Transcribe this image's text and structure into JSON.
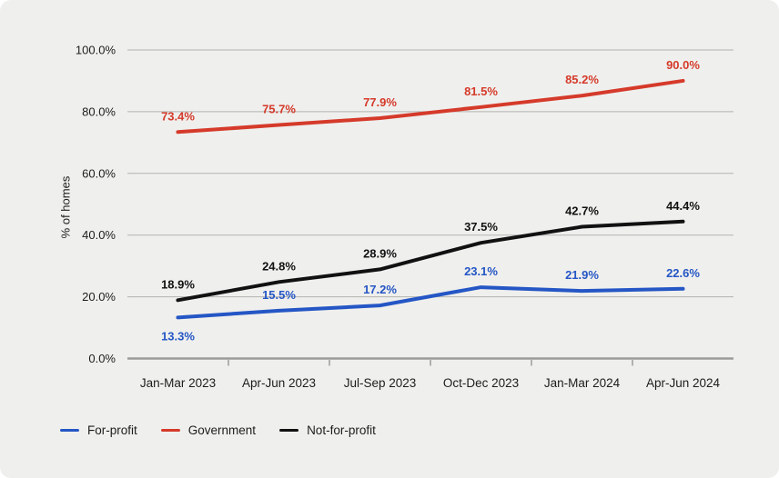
{
  "chart_data": {
    "type": "line",
    "title": "",
    "ylabel": "% of homes",
    "ylim": [
      0,
      100
    ],
    "grid": true,
    "legend_position": "bottom",
    "categories": [
      "Jan-Mar 2023",
      "Apr-Jun 2023",
      "Jul-Sep 2023",
      "Oct-Dec 2023",
      "Jan-Mar 2024",
      "Apr-Jun 2024"
    ],
    "y_ticks": [
      {
        "value": 0,
        "label": "0.0%"
      },
      {
        "value": 20,
        "label": "20.0%"
      },
      {
        "value": 40,
        "label": "40.0%"
      },
      {
        "value": 60,
        "label": "60.0%"
      },
      {
        "value": 80,
        "label": "80.0%"
      },
      {
        "value": 100,
        "label": "100.0%"
      }
    ],
    "series": [
      {
        "name": "For-profit",
        "color": "#2456c5",
        "values": [
          13.3,
          15.5,
          17.2,
          23.1,
          21.9,
          22.6
        ],
        "labels": [
          "13.3%",
          "15.5%",
          "17.2%",
          "23.1%",
          "21.9%",
          "22.6%"
        ]
      },
      {
        "name": "Government",
        "color": "#d53a2a",
        "values": [
          73.4,
          75.7,
          77.9,
          81.5,
          85.2,
          90.0
        ],
        "labels": [
          "73.4%",
          "75.7%",
          "77.9%",
          "81.5%",
          "85.2%",
          "90.0%"
        ]
      },
      {
        "name": "Not-for-profit",
        "color": "#111111",
        "values": [
          18.9,
          24.8,
          28.9,
          37.5,
          42.7,
          44.4
        ],
        "labels": [
          "18.9%",
          "24.8%",
          "28.9%",
          "37.5%",
          "42.7%",
          "44.4%"
        ]
      }
    ]
  }
}
